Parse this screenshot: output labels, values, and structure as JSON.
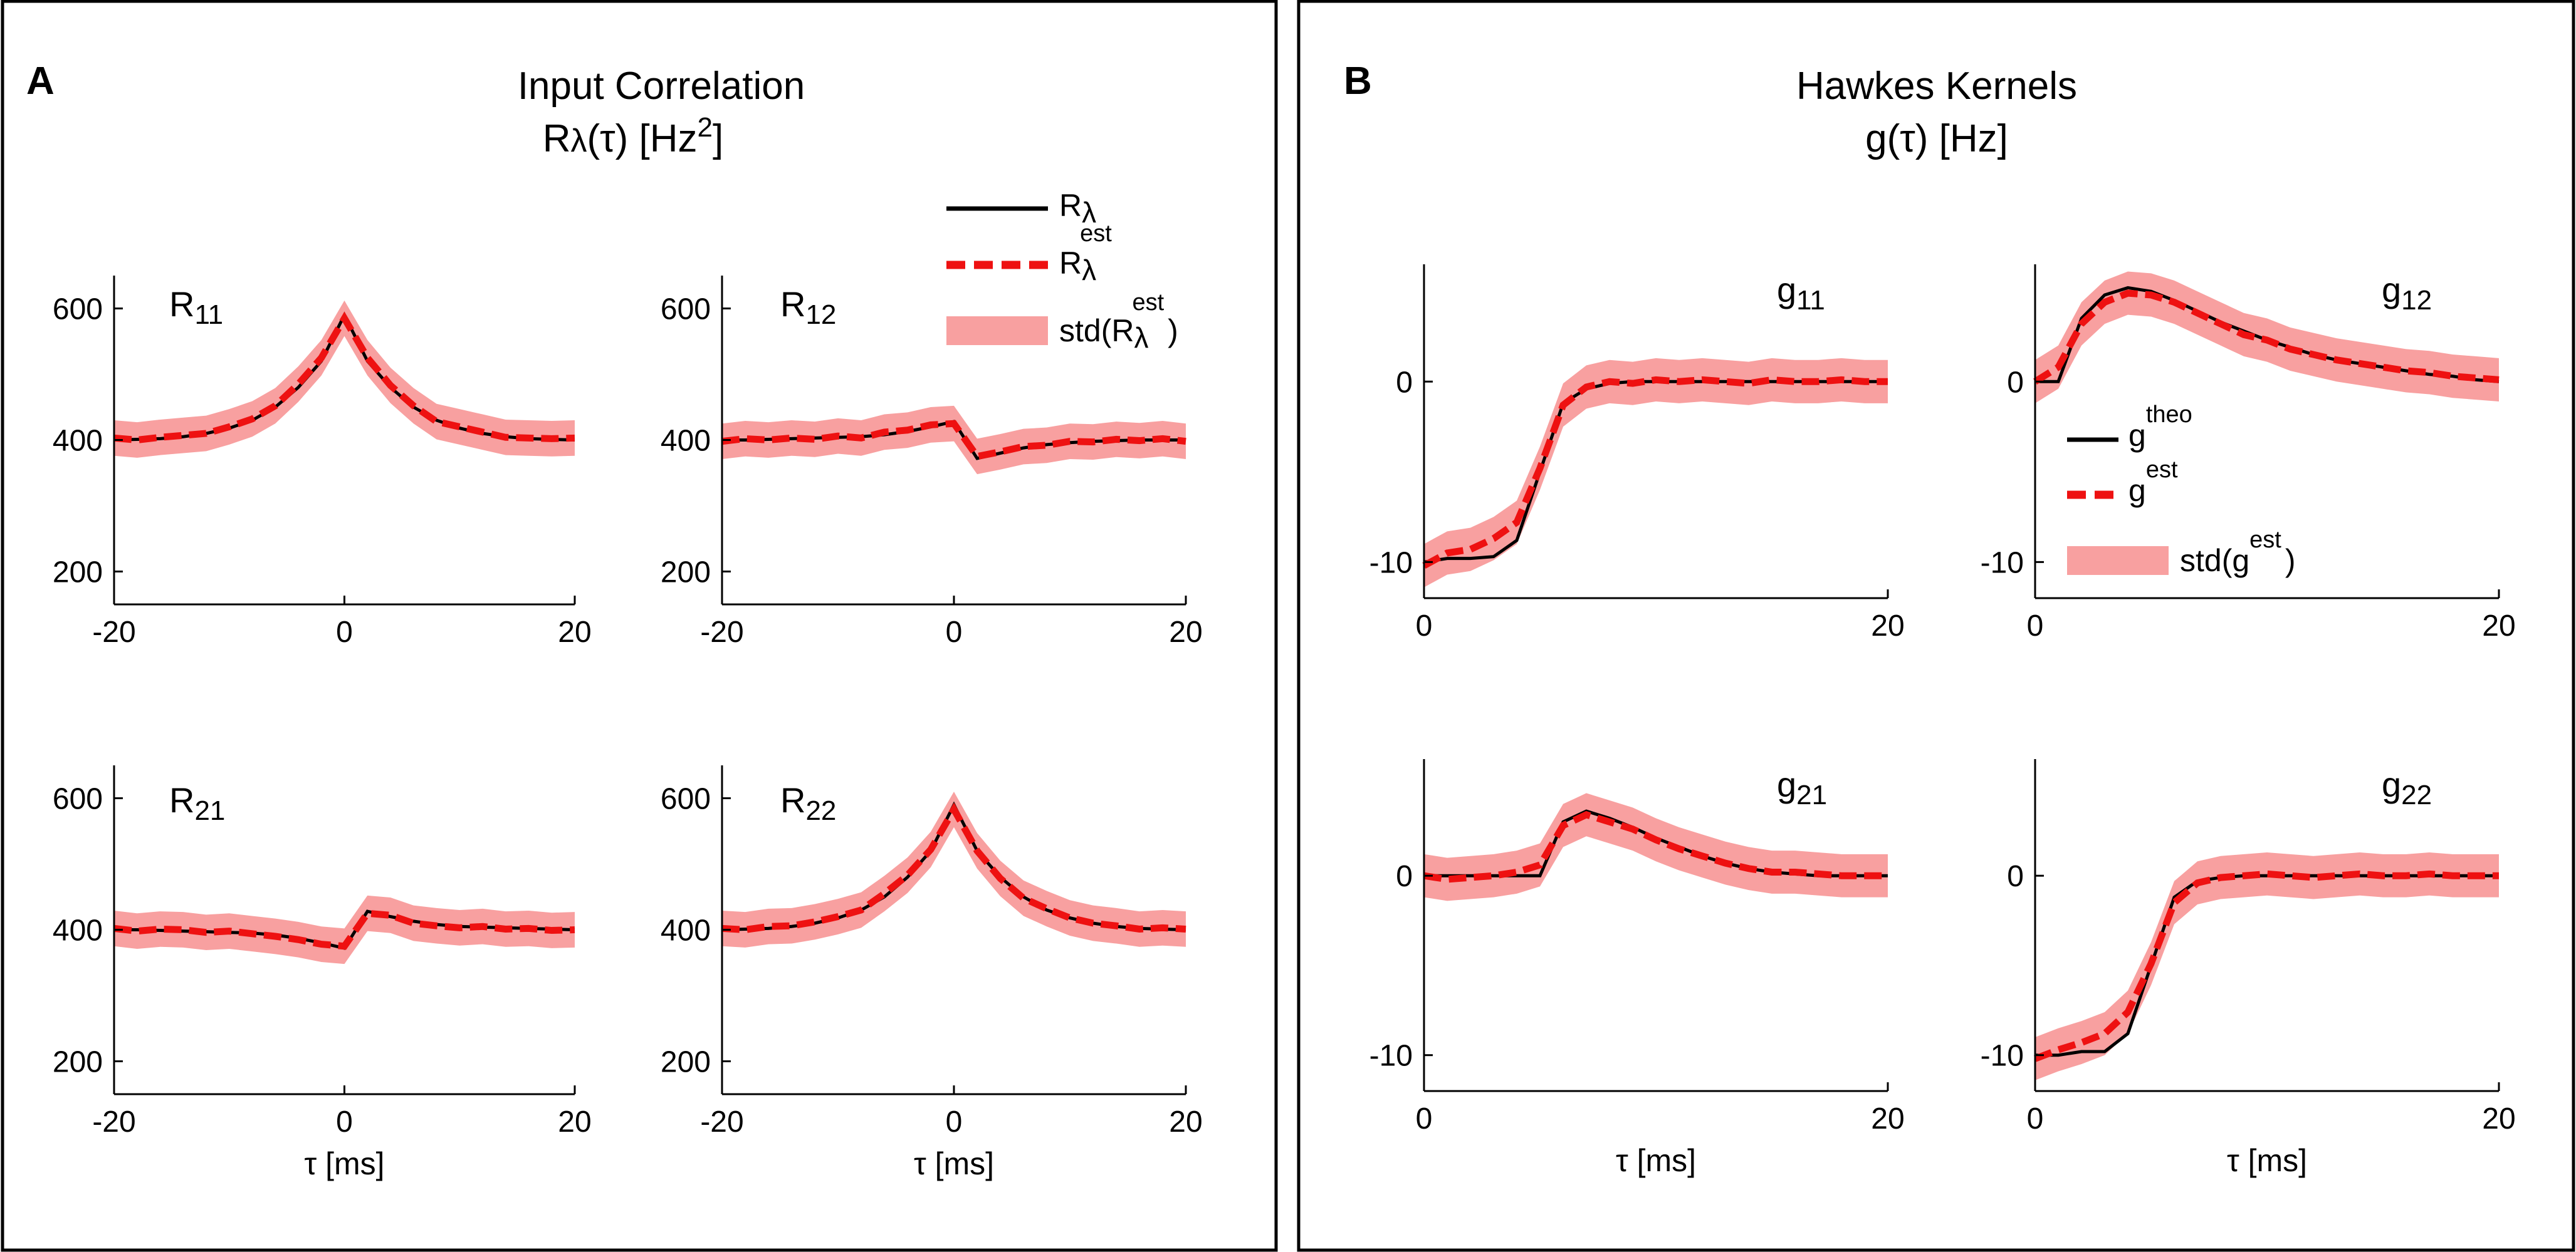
{
  "panels": {
    "A": {
      "letter": "A",
      "title": "Input Correlation",
      "title_unit": "[Hz",
      "title_exp": "2",
      "title_unit_end": "]",
      "title_sym": "R",
      "title_sub": "λ",
      "title_arg": "(τ)"
    },
    "B": {
      "letter": "B",
      "title": "Hawkes Kernels",
      "title_line2": "g(τ) [Hz]"
    }
  },
  "legend_A": {
    "item1": {
      "base": "R",
      "sub": "λ"
    },
    "item2": {
      "base": "R",
      "sub": "λ",
      "sup": "est"
    },
    "item3": {
      "prefix": "std(R",
      "sub": "λ",
      "sup": "est",
      "suffix": ")"
    }
  },
  "legend_B": {
    "item1": {
      "base": "g",
      "sup": "theo"
    },
    "item2": {
      "base": "g",
      "sup": "est"
    },
    "item3": {
      "prefix": "std(g",
      "sup": "est",
      "suffix": ")"
    }
  },
  "xlabel": "τ [ms]",
  "colors": {
    "theory": "#000000",
    "estimate": "#ee1111",
    "band": "#f8a0a0",
    "border": "#000000"
  },
  "chart_data": [
    {
      "id": "R11",
      "type": "line",
      "label_base": "R",
      "label_sub": "11",
      "xlim": [
        -20,
        20
      ],
      "ylim": [
        150,
        650
      ],
      "xticks": [
        -20,
        0,
        20
      ],
      "yticks": [
        200,
        400,
        600
      ],
      "xlabel": "",
      "x": [
        -20,
        -18,
        -16,
        -14,
        -12,
        -10,
        -8,
        -6,
        -4,
        -2,
        0,
        2,
        4,
        6,
        8,
        10,
        12,
        14,
        16,
        18,
        20
      ],
      "theory": [
        400,
        401,
        402,
        405,
        410,
        418,
        430,
        450,
        480,
        520,
        590,
        520,
        480,
        450,
        430,
        418,
        410,
        405,
        402,
        401,
        400
      ],
      "estimate": [
        403,
        400,
        404,
        407,
        410,
        420,
        432,
        452,
        485,
        525,
        585,
        525,
        483,
        452,
        428,
        420,
        412,
        404,
        403,
        402,
        403
      ],
      "std": 27
    },
    {
      "id": "R12",
      "type": "line",
      "label_base": "R",
      "label_sub": "12",
      "xlim": [
        -20,
        20
      ],
      "ylim": [
        150,
        650
      ],
      "xticks": [
        -20,
        0,
        20
      ],
      "yticks": [
        200,
        400,
        600
      ],
      "xlabel": "",
      "x": [
        -20,
        -18,
        -16,
        -14,
        -12,
        -10,
        -8,
        -6,
        -4,
        -2,
        0,
        2,
        4,
        6,
        8,
        10,
        12,
        14,
        16,
        18,
        20
      ],
      "theory": [
        400,
        400,
        401,
        402,
        403,
        404,
        405,
        408,
        413,
        420,
        428,
        372,
        380,
        388,
        393,
        396,
        398,
        399,
        400,
        400,
        400
      ],
      "estimate": [
        398,
        402,
        400,
        403,
        401,
        406,
        403,
        412,
        415,
        423,
        425,
        375,
        382,
        390,
        392,
        398,
        397,
        401,
        399,
        402,
        398
      ],
      "std": 27
    },
    {
      "id": "R21",
      "type": "line",
      "label_base": "R",
      "label_sub": "21",
      "xlim": [
        -20,
        20
      ],
      "ylim": [
        150,
        650
      ],
      "xticks": [
        -20,
        0,
        20
      ],
      "yticks": [
        200,
        400,
        600
      ],
      "xlabel": "τ [ms]",
      "x": [
        -20,
        -18,
        -16,
        -14,
        -12,
        -10,
        -8,
        -6,
        -4,
        -2,
        0,
        2,
        4,
        6,
        8,
        10,
        12,
        14,
        16,
        18,
        20
      ],
      "theory": [
        400,
        400,
        399,
        398,
        397,
        396,
        395,
        392,
        387,
        380,
        372,
        428,
        420,
        413,
        408,
        405,
        404,
        403,
        402,
        401,
        400
      ],
      "estimate": [
        402,
        398,
        401,
        400,
        396,
        398,
        394,
        390,
        385,
        378,
        375,
        425,
        422,
        410,
        406,
        403,
        405,
        401,
        402,
        399,
        400
      ],
      "std": 27
    },
    {
      "id": "R22",
      "type": "line",
      "label_base": "R",
      "label_sub": "22",
      "xlim": [
        -20,
        20
      ],
      "ylim": [
        150,
        650
      ],
      "xticks": [
        -20,
        0,
        20
      ],
      "yticks": [
        200,
        400,
        600
      ],
      "xlabel": "τ [ms]",
      "x": [
        -20,
        -18,
        -16,
        -14,
        -12,
        -10,
        -8,
        -6,
        -4,
        -2,
        0,
        2,
        4,
        6,
        8,
        10,
        12,
        14,
        16,
        18,
        20
      ],
      "theory": [
        400,
        401,
        402,
        405,
        410,
        418,
        430,
        450,
        480,
        520,
        590,
        520,
        480,
        450,
        430,
        418,
        410,
        405,
        402,
        401,
        400
      ],
      "estimate": [
        402,
        400,
        405,
        406,
        412,
        420,
        430,
        455,
        483,
        522,
        583,
        520,
        478,
        448,
        432,
        418,
        410,
        406,
        401,
        403,
        401
      ],
      "std": 27
    },
    {
      "id": "g11",
      "type": "line",
      "label_base": "g",
      "label_sub": "11",
      "xlim": [
        0,
        20
      ],
      "ylim": [
        -12,
        6.5
      ],
      "xticks": [
        0,
        20
      ],
      "yticks": [
        -10,
        0
      ],
      "xlabel": "",
      "x": [
        0,
        1,
        2,
        3,
        4,
        5,
        6,
        7,
        8,
        9,
        10,
        11,
        12,
        13,
        14,
        15,
        16,
        17,
        18,
        19,
        20
      ],
      "theory": [
        -10,
        -9.8,
        -9.8,
        -9.7,
        -8.8,
        -5,
        -1.2,
        -0.4,
        -0.1,
        0,
        0,
        0,
        0,
        0,
        0,
        0,
        0,
        0,
        0,
        0,
        0
      ],
      "estimate": [
        -10.2,
        -9.5,
        -9.3,
        -8.7,
        -7.8,
        -4.8,
        -1.3,
        -0.3,
        0,
        -0.1,
        0.1,
        0,
        0.1,
        0,
        -0.1,
        0.1,
        0,
        0,
        0.1,
        0,
        0
      ],
      "std": 1.2
    },
    {
      "id": "g12",
      "type": "line",
      "label_base": "g",
      "label_sub": "12",
      "xlim": [
        0,
        20
      ],
      "ylim": [
        -12,
        6.5
      ],
      "xticks": [
        0,
        20
      ],
      "yticks": [
        -10,
        0
      ],
      "xlabel": "",
      "x": [
        0,
        1,
        2,
        3,
        4,
        5,
        6,
        7,
        8,
        9,
        10,
        11,
        12,
        13,
        14,
        15,
        16,
        17,
        18,
        19,
        20
      ],
      "theory": [
        0,
        0,
        3.5,
        4.8,
        5.2,
        5,
        4.5,
        3.9,
        3.3,
        2.8,
        2.3,
        1.9,
        1.5,
        1.2,
        1,
        0.8,
        0.6,
        0.4,
        0.3,
        0.1,
        0
      ],
      "estimate": [
        0,
        0.8,
        3.2,
        4.4,
        4.9,
        4.8,
        4.4,
        3.8,
        3.2,
        2.6,
        2.3,
        1.8,
        1.5,
        1.2,
        1,
        0.8,
        0.6,
        0.5,
        0.3,
        0.2,
        0.1
      ],
      "std": 1.2
    },
    {
      "id": "g21",
      "type": "line",
      "label_base": "g",
      "label_sub": "21",
      "xlim": [
        0,
        20
      ],
      "ylim": [
        -12,
        6.5
      ],
      "xticks": [
        0,
        20
      ],
      "yticks": [
        -10,
        0
      ],
      "xlabel": "τ [ms]",
      "x": [
        0,
        1,
        2,
        3,
        4,
        5,
        6,
        7,
        8,
        9,
        10,
        11,
        12,
        13,
        14,
        15,
        16,
        17,
        18,
        19,
        20
      ],
      "theory": [
        0,
        0,
        0,
        0,
        0,
        0,
        3,
        3.6,
        3.2,
        2.7,
        2.1,
        1.6,
        1.1,
        0.7,
        0.4,
        0.2,
        0.1,
        0,
        0,
        0,
        0
      ],
      "estimate": [
        0,
        -0.2,
        -0.1,
        0,
        0.2,
        0.6,
        2.8,
        3.4,
        3,
        2.6,
        2,
        1.5,
        1.1,
        0.7,
        0.4,
        0.2,
        0.2,
        0.1,
        0,
        0,
        0
      ],
      "std": 1.2
    },
    {
      "id": "g22",
      "type": "line",
      "label_base": "g",
      "label_sub": "22",
      "xlim": [
        0,
        20
      ],
      "ylim": [
        -12,
        6.5
      ],
      "xticks": [
        0,
        20
      ],
      "yticks": [
        -10,
        0
      ],
      "xlabel": "τ [ms]",
      "x": [
        0,
        1,
        2,
        3,
        4,
        5,
        6,
        7,
        8,
        9,
        10,
        11,
        12,
        13,
        14,
        15,
        16,
        17,
        18,
        19,
        20
      ],
      "theory": [
        -10,
        -10,
        -9.8,
        -9.8,
        -8.8,
        -5,
        -1.2,
        -0.3,
        -0.1,
        0,
        0,
        0,
        0,
        0,
        0,
        0,
        0,
        0,
        0,
        0,
        0
      ],
      "estimate": [
        -10.2,
        -9.7,
        -9.3,
        -8.8,
        -7.6,
        -4.9,
        -1.5,
        -0.4,
        -0.1,
        0,
        0.1,
        0,
        -0.1,
        0,
        0.1,
        0,
        0,
        0.1,
        0,
        0,
        0
      ],
      "std": 1.2
    }
  ]
}
